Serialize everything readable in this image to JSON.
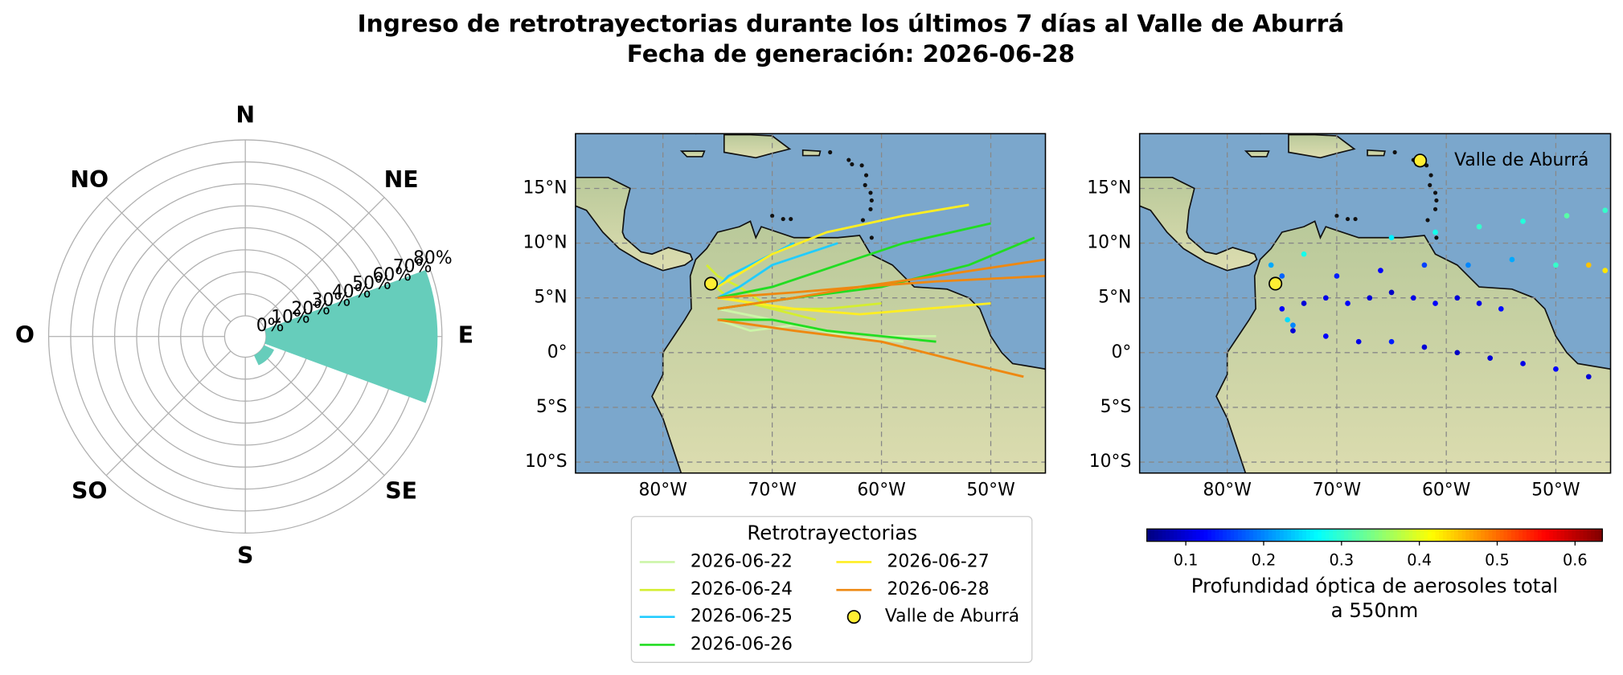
{
  "figure": {
    "title": "Ingreso de retrotrayectorias durante los últimos 7 días al Valle de Aburrá",
    "subtitle": "Fecha de generación: 2026-06-28"
  },
  "chart_data": [
    {
      "type": "rose",
      "categories": [
        "N",
        "NE",
        "E",
        "SE",
        "S",
        "SO",
        "O",
        "NO"
      ],
      "values": [
        0,
        0,
        78,
        5,
        0,
        0,
        0,
        0
      ],
      "color": "#66cdbb",
      "rlim": [
        0,
        80
      ],
      "rticks": [
        {
          "value": 0,
          "label": "0%"
        },
        {
          "value": 10,
          "label": "10%"
        },
        {
          "value": 20,
          "label": "20%"
        },
        {
          "value": 30,
          "label": "30%"
        },
        {
          "value": 40,
          "label": "40%"
        },
        {
          "value": 50,
          "label": "50%"
        },
        {
          "value": 60,
          "label": "60%"
        },
        {
          "value": 70,
          "label": "70%"
        },
        {
          "value": 80,
          "label": "80%"
        }
      ]
    },
    {
      "type": "trajectory",
      "xlim": [
        -88,
        -45
      ],
      "ylim": [
        -11,
        20
      ],
      "xticks": [
        {
          "value": -80,
          "label": "80°W"
        },
        {
          "value": -70,
          "label": "70°W"
        },
        {
          "value": -60,
          "label": "60°W"
        },
        {
          "value": -50,
          "label": "50°W"
        }
      ],
      "yticks": [
        {
          "value": 15,
          "label": "15°N"
        },
        {
          "value": 10,
          "label": "10°N"
        },
        {
          "value": 5,
          "label": "5°N"
        },
        {
          "value": 0,
          "label": "0°"
        },
        {
          "value": -5,
          "label": "5°S"
        },
        {
          "value": -10,
          "label": "10°S"
        }
      ],
      "grid": true,
      "legend_title": "Retrotrayectorias",
      "series": [
        {
          "name": "2026-06-22",
          "color": "#ccf5a8",
          "lines": [
            {
              "x": [
                -75,
                -72,
                -68,
                -63,
                -58
              ],
              "y": [
                3,
                2,
                2.5,
                1.5,
                1
              ]
            },
            {
              "x": [
                -75,
                -70,
                -65,
                -60,
                -55
              ],
              "y": [
                4,
                3,
                2,
                1.5,
                1.5
              ]
            }
          ]
        },
        {
          "name": "2026-06-24",
          "color": "#d4ee30",
          "lines": [
            {
              "x": [
                -75.5,
                -74,
                -70,
                -65,
                -60
              ],
              "y": [
                6.3,
                5,
                4,
                4,
                4.5
              ]
            },
            {
              "x": [
                -76,
                -75,
                -73,
                -70,
                -66
              ],
              "y": [
                8,
                7,
                6,
                4,
                3
              ]
            }
          ]
        },
        {
          "name": "2026-06-25",
          "color": "#22ccff",
          "lines": [
            {
              "x": [
                -75,
                -74,
                -72,
                -70,
                -68
              ],
              "y": [
                6,
                7,
                8,
                9,
                10
              ]
            },
            {
              "x": [
                -75,
                -73,
                -70,
                -67,
                -64
              ],
              "y": [
                5,
                6,
                8,
                9,
                10
              ]
            }
          ]
        },
        {
          "name": "2026-06-26",
          "color": "#22dd22",
          "lines": [
            {
              "x": [
                -75,
                -70,
                -64,
                -58,
                -50
              ],
              "y": [
                5,
                6,
                8,
                10,
                11.8
              ]
            },
            {
              "x": [
                -75,
                -68,
                -60,
                -52,
                -46
              ],
              "y": [
                4,
                5,
                6,
                8,
                10.5
              ]
            },
            {
              "x": [
                -75,
                -70,
                -65,
                -60,
                -55
              ],
              "y": [
                3,
                3,
                2,
                1.5,
                1
              ]
            }
          ]
        },
        {
          "name": "2026-06-27",
          "color": "#ffee22",
          "lines": [
            {
              "x": [
                -75,
                -70,
                -65,
                -58,
                -52
              ],
              "y": [
                6,
                9,
                11,
                12.5,
                13.5
              ]
            },
            {
              "x": [
                -75,
                -68,
                -62,
                -56,
                -50
              ],
              "y": [
                5,
                4,
                3.5,
                4,
                4.5
              ]
            }
          ]
        },
        {
          "name": "2026-06-28",
          "color": "#ee8811",
          "lines": [
            {
              "x": [
                -75,
                -68,
                -62,
                -55,
                -45
              ],
              "y": [
                4,
                5,
                6,
                7,
                8.5
              ]
            },
            {
              "x": [
                -75,
                -68,
                -60,
                -52,
                -47
              ],
              "y": [
                3,
                2,
                1,
                -1,
                -2.2
              ]
            },
            {
              "x": [
                -75,
                -68,
                -62,
                -55,
                -45
              ],
              "y": [
                5,
                5.5,
                6,
                6.5,
                7
              ]
            }
          ]
        }
      ],
      "point": {
        "name": "Valle de Aburrá",
        "x": -75.6,
        "y": 6.3,
        "color": "#ffee33"
      }
    },
    {
      "type": "scatter",
      "xlim": [
        -88,
        -45
      ],
      "ylim": [
        -11,
        20
      ],
      "xticks": [
        {
          "value": -80,
          "label": "80°W"
        },
        {
          "value": -70,
          "label": "70°W"
        },
        {
          "value": -60,
          "label": "60°W"
        },
        {
          "value": -50,
          "label": "50°W"
        }
      ],
      "yticks": [
        {
          "value": 15,
          "label": "15°N"
        },
        {
          "value": 10,
          "label": "10°N"
        },
        {
          "value": 5,
          "label": "5°N"
        },
        {
          "value": 0,
          "label": "0°"
        },
        {
          "value": -5,
          "label": "5°S"
        },
        {
          "value": -10,
          "label": "10°S"
        }
      ],
      "grid": true,
      "colormap": "jet",
      "x": [
        -75,
        -73,
        -71,
        -69,
        -67,
        -65,
        -63,
        -61,
        -59,
        -57,
        -55,
        -74,
        -71,
        -68,
        -65,
        -62,
        -59,
        -56,
        -53,
        -50,
        -47,
        -65,
        -61,
        -57,
        -53,
        -49,
        -45.5,
        -70,
        -66,
        -62,
        -58,
        -54,
        -50,
        -47,
        -45.5,
        -76,
        -75,
        -74.5,
        -74,
        -73
      ],
      "y": [
        4,
        4.5,
        5,
        4.5,
        5,
        5.5,
        5,
        4.5,
        5,
        4.5,
        4,
        2,
        1.5,
        1,
        1,
        0.5,
        0,
        -0.5,
        -1,
        -1.5,
        -2.2,
        10.5,
        11,
        11.5,
        12,
        12.5,
        13,
        7,
        7.5,
        8,
        8,
        8.5,
        8,
        8,
        7.5,
        8,
        7,
        3,
        2.5,
        9
      ],
      "values": [
        0.12,
        0.1,
        0.11,
        0.12,
        0.1,
        0.09,
        0.11,
        0.12,
        0.1,
        0.11,
        0.13,
        0.1,
        0.12,
        0.11,
        0.14,
        0.1,
        0.09,
        0.1,
        0.11,
        0.12,
        0.1,
        0.26,
        0.28,
        0.3,
        0.29,
        0.32,
        0.3,
        0.14,
        0.12,
        0.16,
        0.2,
        0.22,
        0.3,
        0.45,
        0.43,
        0.22,
        0.18,
        0.25,
        0.2,
        0.28
      ],
      "colorbar": {
        "lim": [
          0.05,
          0.635
        ],
        "ticks": [
          0.1,
          0.2,
          0.3,
          0.4,
          0.5,
          0.6
        ],
        "label": [
          "Profundidad óptica de aerosoles total",
          "a 550nm"
        ]
      },
      "legend": "upper right",
      "point": {
        "name": "Valle de Aburrá",
        "x": -75.6,
        "y": 6.3,
        "color": "#ffee33"
      }
    }
  ]
}
